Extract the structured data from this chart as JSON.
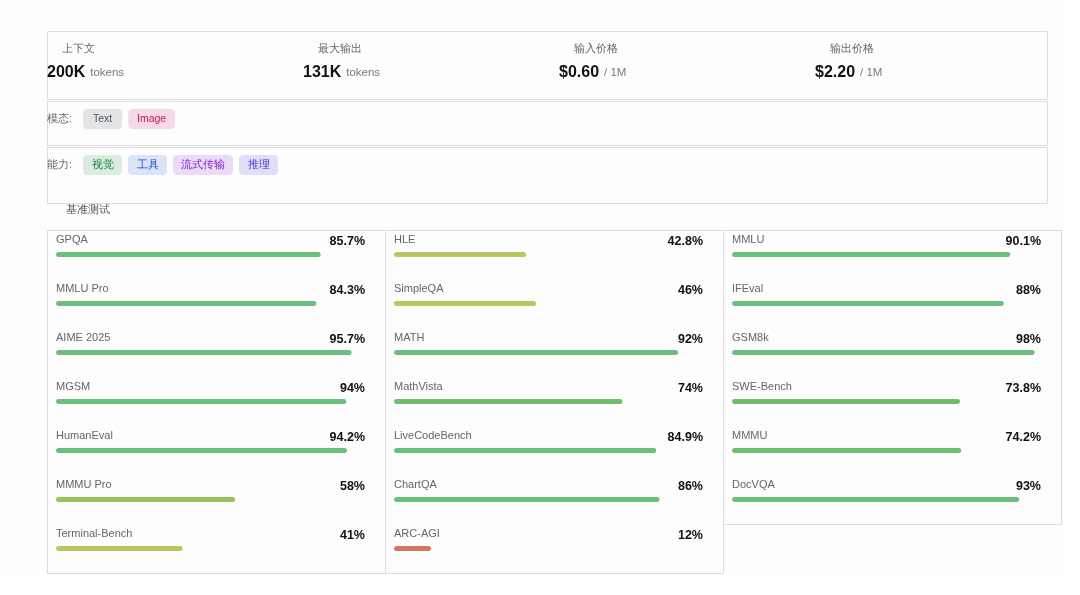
{
  "chart_data": [
    {
      "type": "other",
      "annotations": [
        "上下文",
        "200K tokens",
        "最大输出",
        "131K tokens",
        "输入价格",
        "$0.60 / 1M",
        "输出价格",
        "$2.20 / 1M"
      ]
    },
    {
      "type": "other",
      "title": "模态:",
      "annotations": [
        "Text",
        "Image"
      ],
      "colors": [
        "#4b5563",
        "#be185d"
      ]
    },
    {
      "type": "other",
      "title": "能力:",
      "annotations": [
        "视觉",
        "工具",
        "流式传输",
        "推理"
      ],
      "colors": [
        "#15803d",
        "#1d4ed8",
        "#7e22ce",
        "#4338ca"
      ]
    },
    {
      "type": "bar",
      "orientation": "horizontal",
      "title": "基准测试",
      "tick_labels": "y",
      "categories": [
        "GPQA",
        "MMLU Pro",
        "AIME 2025",
        "MGSM",
        "HumanEval",
        "MMMU Pro",
        "Terminal-Bench"
      ],
      "values": [
        85.7,
        84.3,
        95.7,
        94,
        94.2,
        58,
        41
      ],
      "value_labels": [
        "85.7%",
        "84.3%",
        "95.7%",
        "94%",
        "94.2%",
        "58%",
        "41%"
      ],
      "colors": [
        "#6dbf7d",
        "#6dbf7d",
        "#6dbf7d",
        "#6dbf7d",
        "#6dbf7d",
        "#96c35c",
        "#bcc562"
      ]
    },
    {
      "type": "bar",
      "orientation": "horizontal",
      "tick_labels": "y",
      "categories": [
        "HLE",
        "SimpleQA",
        "MATH",
        "MathVista",
        "LiveCodeBench",
        "ChartQA",
        "ARC-AGI"
      ],
      "values": [
        42.8,
        46,
        92,
        74,
        84.9,
        86,
        12
      ],
      "value_labels": [
        "42.8%",
        "46%",
        "92%",
        "74%",
        "84.9%",
        "86%",
        "12%"
      ],
      "colors": [
        "#bcc562",
        "#bcc562",
        "#6dbf7d",
        "#6fbe6c",
        "#6dbf7d",
        "#6dbf7d",
        "#cf7b5c"
      ]
    },
    {
      "type": "bar",
      "orientation": "horizontal",
      "tick_labels": "y",
      "categories": [
        "MMLU",
        "IFEval",
        "GSM8k",
        "SWE-Bench",
        "MMMU",
        "DocVQA"
      ],
      "values": [
        90.1,
        88,
        98,
        73.8,
        74.2,
        93
      ],
      "value_labels": [
        "90.1%",
        "88%",
        "98%",
        "73.8%",
        "74.2%",
        "93%"
      ],
      "colors": [
        "#6dbf7d",
        "#6dbf7d",
        "#6dbf7d",
        "#6fbe6c",
        "#6fbe6c",
        "#6dbf7d"
      ]
    }
  ]
}
